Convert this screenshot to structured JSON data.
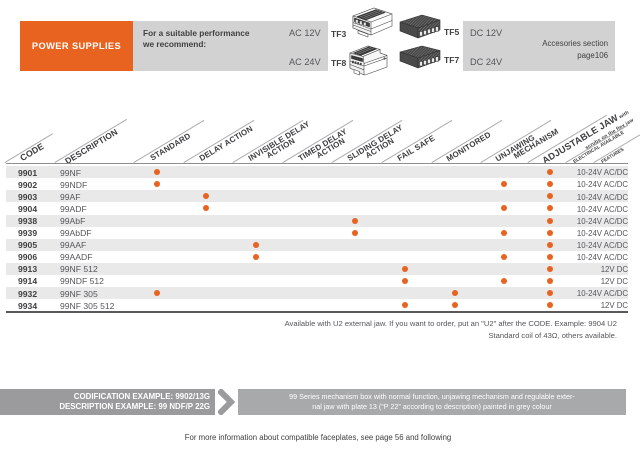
{
  "header": {
    "power_supplies_label": "POWER SUPPLIES",
    "recommend_text": "For a suitable performance\nwe recommend:",
    "ac12": "AC 12V",
    "tf3": "TF3",
    "ac24": "AC 24V",
    "tf8": "TF8",
    "tf5": "TF5",
    "tf7": "TF7",
    "dc12": "DC 12V",
    "dc24": "DC 24V",
    "accessories_note": "Accesories section\npage106"
  },
  "table": {
    "columns": [
      {
        "key": "code",
        "label": "CODE",
        "size": "one"
      },
      {
        "key": "description",
        "label": "DESCRIPTION",
        "size": "one"
      },
      {
        "key": "standard",
        "label": "STANDARD",
        "size": "one"
      },
      {
        "key": "delay",
        "label": "DELAY ACTION",
        "size": "one"
      },
      {
        "key": "invisible_delay",
        "label": "INVISIBLE DELAY\nACTION",
        "size": "two"
      },
      {
        "key": "timed_delay",
        "label": "TIMED DELAY\nACTION",
        "size": "two"
      },
      {
        "key": "sliding_delay",
        "label": "SLIDING DELAY\nACTION",
        "size": "two"
      },
      {
        "key": "fail_safe",
        "label": "FAIL SAFE",
        "size": "one"
      },
      {
        "key": "monitored",
        "label": "MONITORED",
        "size": "one"
      },
      {
        "key": "unjawing",
        "label": "UNJAWING\nMECHANISM",
        "size": "two"
      },
      {
        "key": "adjustable_jaw",
        "label": "ADJUSTABLE JAW",
        "sub_inline": " with",
        "sub": "scrubs on the flex jaw",
        "size": "adj"
      },
      {
        "key": "electrical",
        "label": "ELECTRICAL AVAILABLE",
        "size": "tiny"
      },
      {
        "key": "features",
        "label": "FEATURES",
        "size": "tiny"
      }
    ],
    "rows": [
      {
        "code": "9901",
        "description": "99NF",
        "features": [
          "standard",
          "adjustable_jaw"
        ],
        "voltage": "10-24V AC/DC"
      },
      {
        "code": "9902",
        "description": "99NDF",
        "features": [
          "standard",
          "unjawing",
          "adjustable_jaw"
        ],
        "voltage": "10-24V AC/DC"
      },
      {
        "code": "9903",
        "description": "99AF",
        "features": [
          "delay",
          "adjustable_jaw"
        ],
        "voltage": "10-24V AC/DC"
      },
      {
        "code": "9904",
        "description": "99ADF",
        "features": [
          "delay",
          "unjawing",
          "adjustable_jaw"
        ],
        "voltage": "10-24V AC/DC"
      },
      {
        "code": "9938",
        "description": "99AbF",
        "features": [
          "sliding_delay",
          "adjustable_jaw"
        ],
        "voltage": "10-24V AC/DC"
      },
      {
        "code": "9939",
        "description": "99AbDF",
        "features": [
          "sliding_delay",
          "unjawing",
          "adjustable_jaw"
        ],
        "voltage": "10-24V AC/DC"
      },
      {
        "code": "9905",
        "description": "99AAF",
        "features": [
          "invisible_delay",
          "adjustable_jaw"
        ],
        "voltage": "10-24V AC/DC"
      },
      {
        "code": "9906",
        "description": "99AADF",
        "features": [
          "invisible_delay",
          "unjawing",
          "adjustable_jaw"
        ],
        "voltage": "10-24V AC/DC"
      },
      {
        "code": "9913",
        "description": "99NF 512",
        "features": [
          "fail_safe",
          "adjustable_jaw"
        ],
        "voltage": "12V DC"
      },
      {
        "code": "9914",
        "description": "99NDF 512",
        "features": [
          "fail_safe",
          "unjawing",
          "adjustable_jaw"
        ],
        "voltage": "12V DC"
      },
      {
        "code": "9932",
        "description": "99NF 305",
        "features": [
          "standard",
          "monitored",
          "adjustable_jaw"
        ],
        "voltage": "10-24V AC/DC"
      },
      {
        "code": "9934",
        "description": "99NF 305 512",
        "features": [
          "fail_safe",
          "monitored",
          "adjustable_jaw"
        ],
        "voltage": "12V DC"
      }
    ]
  },
  "notes": {
    "order_note": "Available with U2 external jaw. If you want to order, put an \"U2\" after the CODE. Example: 9904 U2\nStandard coil of 43Ω, others available."
  },
  "codification": {
    "line1": "CODIFICATION EXAMPLE: 9902/13G",
    "line2": "DESCRIPTION EXAMPLE: 99 NDF/P 22G",
    "description_line1": "99 Series mechanism box with normal function, unjawing mechanism and regulable exter-",
    "description_line2": "nal jaw with plate 13 (“P 22” according to description) painted in grey colour"
  },
  "footer": {
    "text": "For more information about compatible faceplates, see page 56 and following"
  },
  "colors": {
    "orange": "#E7631F",
    "top_box_gray": "#D2D2D2",
    "row_gray": "#E9E9E9",
    "dark_box_gray": "#9B9B9D",
    "light_box_gray": "#A8A9AB",
    "text_dark": "#414042",
    "text_medium": "#55565A"
  }
}
